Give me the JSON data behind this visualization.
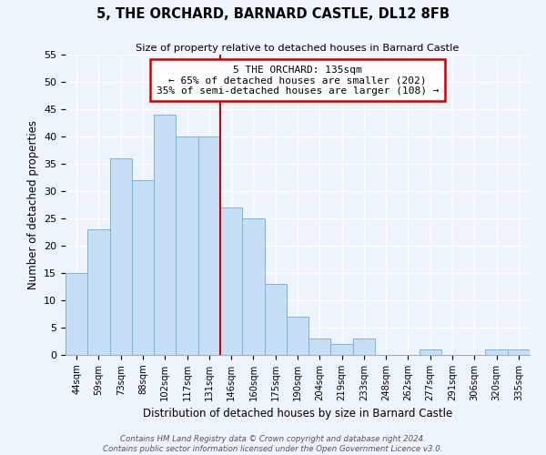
{
  "title": "5, THE ORCHARD, BARNARD CASTLE, DL12 8FB",
  "subtitle": "Size of property relative to detached houses in Barnard Castle",
  "xlabel": "Distribution of detached houses by size in Barnard Castle",
  "ylabel": "Number of detached properties",
  "bar_labels": [
    "44sqm",
    "59sqm",
    "73sqm",
    "88sqm",
    "102sqm",
    "117sqm",
    "131sqm",
    "146sqm",
    "160sqm",
    "175sqm",
    "190sqm",
    "204sqm",
    "219sqm",
    "233sqm",
    "248sqm",
    "262sqm",
    "277sqm",
    "291sqm",
    "306sqm",
    "320sqm",
    "335sqm"
  ],
  "bar_heights": [
    15,
    23,
    36,
    32,
    44,
    40,
    40,
    27,
    25,
    13,
    7,
    3,
    2,
    3,
    0,
    0,
    1,
    0,
    0,
    1,
    1
  ],
  "bar_color": "#c6dff5",
  "bar_edge_color": "#7ab3d9",
  "vline_x": 6.5,
  "vline_color": "#cc0000",
  "annotation_title": "5 THE ORCHARD: 135sqm",
  "annotation_line1": "← 65% of detached houses are smaller (202)",
  "annotation_line2": "35% of semi-detached houses are larger (108) →",
  "annotation_box_facecolor": "#ffffff",
  "annotation_box_edgecolor": "#cc0000",
  "ylim": [
    0,
    55
  ],
  "yticks": [
    0,
    5,
    10,
    15,
    20,
    25,
    30,
    35,
    40,
    45,
    50,
    55
  ],
  "footer_line1": "Contains HM Land Registry data © Crown copyright and database right 2024.",
  "footer_line2": "Contains public sector information licensed under the Open Government Licence v3.0.",
  "background_color": "#eef4fc",
  "grid_color": "#ffffff"
}
